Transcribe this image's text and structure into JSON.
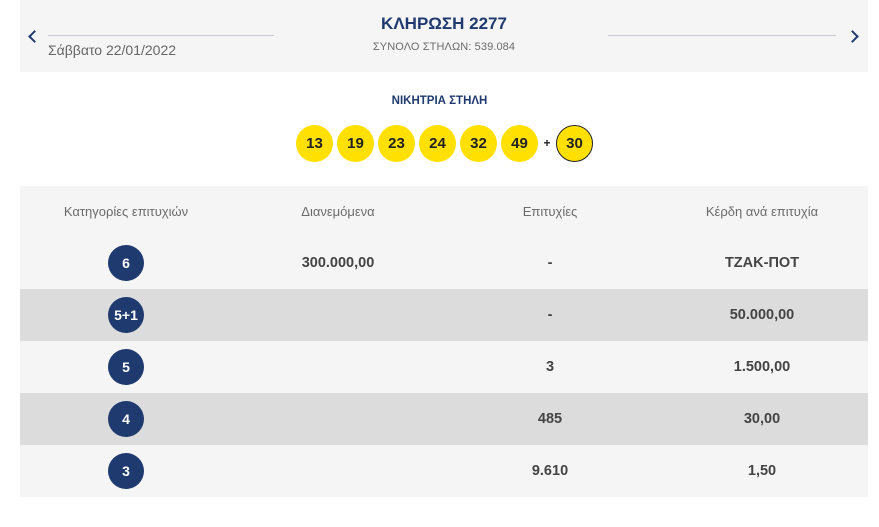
{
  "header": {
    "date": "Σάββατο 22/01/2022",
    "title": "ΚΛΗΡΩΣΗ 2277",
    "subtitle": "ΣΥΝΟΛΟ ΣΤΗΛΩΝ: 539.084",
    "prev_icon": "chevron-left-icon",
    "next_icon": "chevron-right-icon"
  },
  "winning": {
    "label": "ΝΙΚΗΤΡΙΑ ΣΤΗΛΗ",
    "numbers": [
      "13",
      "19",
      "23",
      "24",
      "32",
      "49"
    ],
    "plus": "+",
    "bonus": "30",
    "ball_color": "#ffe000"
  },
  "table": {
    "headers": [
      "Κατηγορίες επιτυχιών",
      "Διανεμόμενα",
      "Επιτυχίες",
      "Κέρδη ανά επιτυχία"
    ],
    "rows": [
      {
        "category": "6",
        "distributed": "300.000,00",
        "winners": "-",
        "prize": "ΤΖΑΚ-ΠΟΤ"
      },
      {
        "category": "5+1",
        "distributed": "",
        "winners": "-",
        "prize": "50.000,00"
      },
      {
        "category": "5",
        "distributed": "",
        "winners": "3",
        "prize": "1.500,00"
      },
      {
        "category": "4",
        "distributed": "",
        "winners": "485",
        "prize": "30,00"
      },
      {
        "category": "3",
        "distributed": "",
        "winners": "9.610",
        "prize": "1,50"
      }
    ],
    "badge_color": "#1f3a6e"
  }
}
